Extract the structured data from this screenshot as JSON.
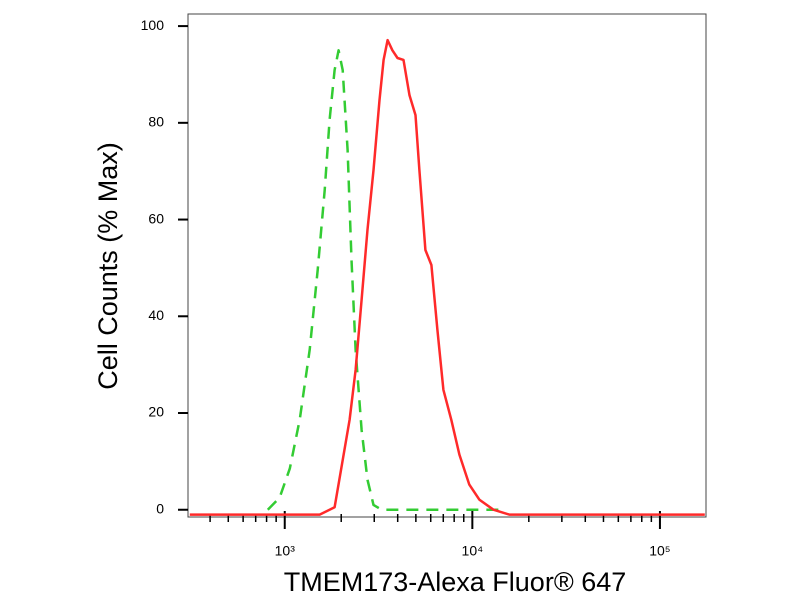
{
  "chart_data": {
    "type": "line",
    "xlabel": "TMEM173-Alexa Fluor® 647",
    "ylabel": "Cell Counts (% Max)",
    "xscale": "log",
    "xlim": [
      305,
      176000
    ],
    "ylim": [
      -1.5,
      102.5
    ],
    "xticks": [
      {
        "value": 1000,
        "label": "10³"
      },
      {
        "value": 10000,
        "label": "10⁴"
      },
      {
        "value": 100000,
        "label": "10⁵"
      }
    ],
    "xminorticks": [
      400,
      500,
      600,
      700,
      800,
      900,
      2000,
      3000,
      4000,
      5000,
      6000,
      7000,
      8000,
      9000,
      20000,
      30000,
      40000,
      50000,
      60000,
      70000,
      80000,
      90000
    ],
    "yticks": [
      0,
      20,
      40,
      60,
      80,
      100
    ],
    "series": [
      {
        "color": "#33cc33",
        "dash": true,
        "x": [
          812,
          939,
          1064,
          1202,
          1358,
          1499,
          1632,
          1735,
          1845,
          1936,
          2036,
          2163,
          2270,
          2387,
          2570,
          2762,
          2972,
          3281,
          13930
        ],
        "values": [
          0,
          2.5,
          8.5,
          18.6,
          33.1,
          49.6,
          66.1,
          80.6,
          90.9,
          95.0,
          90.9,
          74.4,
          51.7,
          33.1,
          16.5,
          6.2,
          1.0,
          0,
          0
        ]
      },
      {
        "color": "#ff2a2a",
        "dash": false,
        "x": [
          312,
          1535,
          1845,
          2218,
          2387,
          2570,
          2762,
          2972,
          3199,
          3363,
          3532,
          3750,
          3991,
          4295,
          4623,
          4975,
          5223,
          5623,
          6053,
          6515,
          7012,
          7727,
          8531,
          9637,
          10888,
          12942,
          15730,
          173400
        ],
        "values": [
          -1,
          -1,
          0.5,
          18.6,
          28.9,
          43.4,
          57.9,
          70.2,
          84.7,
          93.0,
          97.1,
          95.0,
          93.4,
          93.0,
          85.7,
          81.6,
          70.2,
          53.7,
          50.6,
          37.2,
          24.8,
          18.6,
          11.4,
          5.2,
          2.1,
          0,
          -1,
          -1
        ]
      }
    ]
  }
}
